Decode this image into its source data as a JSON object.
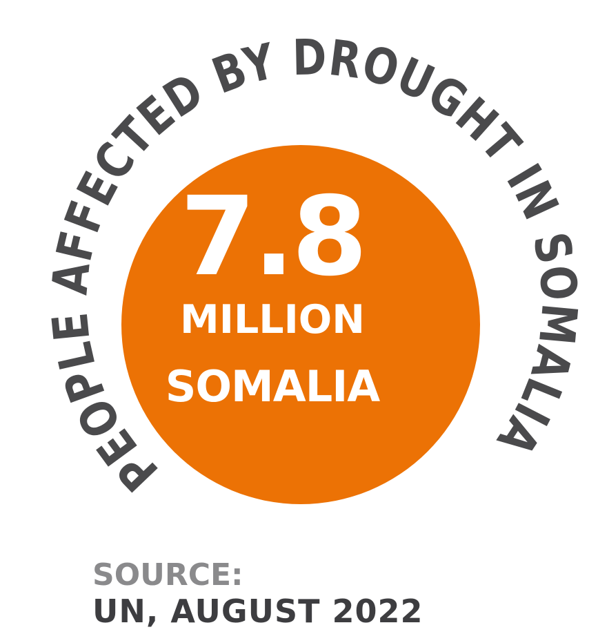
{
  "infographic": {
    "arc_heading": "PEOPLE AFFECTED BY DROUGHT IN SOMALIA",
    "value": "7.8",
    "unit": "MILLION",
    "country": "SOMALIA",
    "source_label": "SOURCE:",
    "source_value": "UN, AUGUST 2022"
  },
  "colors": {
    "circle": "#ec7205",
    "arc_text": "#4a4a4c",
    "source_label": "#8a8a8c",
    "source_value": "#3d3d40",
    "center_text": "#ffffff"
  }
}
